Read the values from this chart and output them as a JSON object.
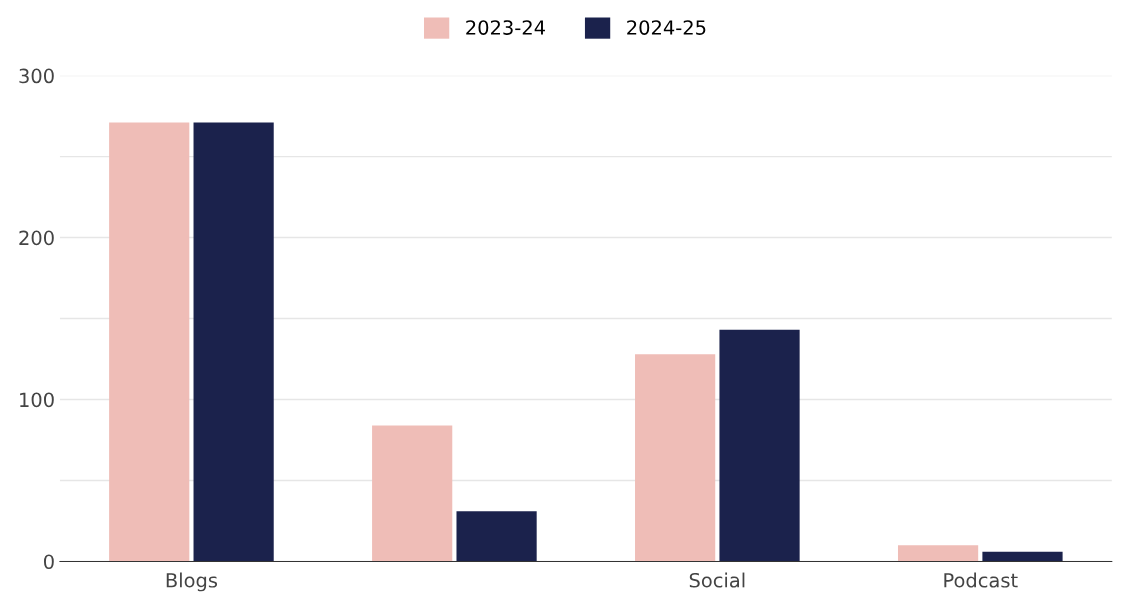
{
  "chart_data": {
    "type": "bar",
    "categories": [
      "Blogs",
      null,
      "Social",
      "Podcast"
    ],
    "series": [
      {
        "name": "2023-24",
        "color": "#efbdb7",
        "values": [
          271,
          84,
          128,
          10
        ]
      },
      {
        "name": "2024-25",
        "color": "#1b224c",
        "values": [
          271,
          31,
          143,
          6
        ]
      }
    ],
    "ylim": [
      0,
      300
    ],
    "yticks": [
      0,
      {
        "value": 50,
        "label": null
      },
      100,
      {
        "value": 150,
        "label": null
      },
      200,
      {
        "value": 250,
        "label": null
      },
      300
    ],
    "grid": "y",
    "legend": "top"
  }
}
